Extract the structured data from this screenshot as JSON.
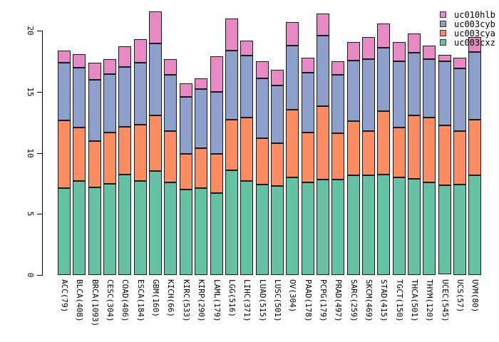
{
  "chart_data": {
    "type": "bar",
    "stacked": true,
    "title": "",
    "xlabel": "",
    "ylabel": "",
    "categories": [
      "ACC(79)",
      "BLCA(408)",
      "BRCA(1093)",
      "CESC(304)",
      "COAD(406)",
      "ESCA(184)",
      "GBM(160)",
      "KICH(66)",
      "KIRC(533)",
      "KIRP(290)",
      "LAML(179)",
      "LGG(516)",
      "LIHC(371)",
      "LUAD(515)",
      "LUSC(501)",
      "OV(304)",
      "PAAD(178)",
      "PCPG(179)",
      "PRAD(497)",
      "SARC(259)",
      "SKCM(469)",
      "STAD(415)",
      "TGCT(150)",
      "THCA(501)",
      "THYM(120)",
      "UCEC(545)",
      "UCS(57)",
      "UVM(80)"
    ],
    "series": [
      {
        "name": "uc003cxz",
        "color": "#66C2A5",
        "values": [
          7.1,
          7.7,
          7.2,
          7.5,
          8.2,
          7.7,
          8.5,
          7.6,
          7.0,
          7.1,
          6.7,
          8.6,
          7.7,
          7.4,
          7.3,
          8.0,
          7.6,
          7.8,
          7.8,
          8.2,
          8.2,
          8.2,
          8.0,
          7.9,
          7.6,
          7.3,
          7.4,
          8.2
        ]
      },
      {
        "name": "uc003cya",
        "color": "#FC8D62",
        "values": [
          5.6,
          4.4,
          3.8,
          4.2,
          3.9,
          4.6,
          4.6,
          4.2,
          2.9,
          3.3,
          3.2,
          4.1,
          5.2,
          3.8,
          3.5,
          5.5,
          4.1,
          6.0,
          3.8,
          4.4,
          3.6,
          5.2,
          4.1,
          5.2,
          5.3,
          4.9,
          4.4,
          4.5
        ]
      },
      {
        "name": "uc003cyb",
        "color": "#8DA0CB",
        "values": [
          4.7,
          4.9,
          5.0,
          4.8,
          4.9,
          5.1,
          5.9,
          4.6,
          4.7,
          4.8,
          5.1,
          5.7,
          5.1,
          4.9,
          4.7,
          5.3,
          4.9,
          5.8,
          4.8,
          5.0,
          5.9,
          5.2,
          5.4,
          5.1,
          4.8,
          5.3,
          5.1,
          5.6
        ]
      },
      {
        "name": "uc010hlb",
        "color": "#E78AC3",
        "values": [
          1.0,
          1.1,
          1.4,
          1.2,
          1.7,
          1.9,
          2.6,
          1.3,
          1.1,
          0.9,
          2.9,
          2.6,
          1.2,
          1.4,
          1.3,
          1.9,
          1.2,
          1.8,
          1.1,
          1.5,
          1.8,
          2.0,
          1.6,
          1.6,
          1.1,
          0.5,
          0.9,
          1.2
        ]
      }
    ],
    "y_axis": {
      "ticks": [
        0,
        5,
        10,
        15,
        20
      ],
      "ylim": [
        0,
        21.8
      ],
      "grid": false
    },
    "legend": {
      "position": "top-right",
      "order": [
        "uc010hlb",
        "uc003cyb",
        "uc003cya",
        "uc003cxz"
      ]
    }
  }
}
